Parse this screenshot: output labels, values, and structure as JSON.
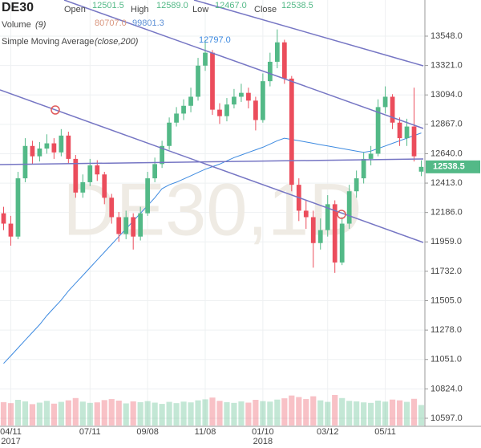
{
  "chart_data": {
    "type": "candlestick",
    "symbol": "DE30",
    "watermark": "DE30,1D",
    "legend": {
      "open_label": "Open",
      "open": "12501.5",
      "high_label": "High",
      "high": "12589.0",
      "low_label": "Low",
      "low": "12467.0",
      "close_label": "Close",
      "close": "12538.5"
    },
    "volume_legend": {
      "name": "Volume",
      "param": "(9)",
      "value": "80707.0",
      "average": "99801.3"
    },
    "ma_legend": {
      "name": "Simple Moving Average",
      "param": "(close,200)"
    },
    "annotation": "12797.0",
    "last_price": "12538.5",
    "categories": [
      null,
      "04/11",
      null,
      null,
      null,
      null,
      null,
      null,
      null,
      null,
      null,
      null,
      "07/11",
      null,
      null,
      null,
      null,
      null,
      null,
      null,
      "09/08",
      null,
      null,
      null,
      null,
      null,
      null,
      null,
      "11/08",
      null,
      null,
      null,
      null,
      null,
      null,
      null,
      "01/10",
      null,
      null,
      null,
      null,
      null,
      null,
      null,
      null,
      "03/12",
      null,
      null,
      null,
      null,
      null,
      null,
      null,
      "05/11",
      null,
      null,
      null,
      null,
      null
    ],
    "years": [
      null,
      "2017",
      null,
      null,
      null,
      null,
      null,
      null,
      null,
      null,
      null,
      null,
      null,
      null,
      null,
      null,
      null,
      null,
      null,
      null,
      null,
      null,
      null,
      null,
      null,
      null,
      null,
      null,
      null,
      null,
      null,
      null,
      null,
      null,
      null,
      null,
      "2018",
      null,
      null,
      null,
      null,
      null,
      null,
      null,
      null,
      null,
      null,
      null,
      null,
      null,
      null,
      null,
      null,
      null,
      null,
      null,
      null,
      null,
      null
    ],
    "open": [
      12180,
      12100,
      12000,
      12450,
      12700,
      12620,
      12680,
      12720,
      12650,
      12780,
      12600,
      12340,
      12420,
      12550,
      12480,
      12300,
      12150,
      12020,
      12150,
      12000,
      12180,
      12450,
      12560,
      12700,
      12880,
      12950,
      13010,
      13080,
      13320,
      13420,
      12980,
      12930,
      13020,
      13080,
      13110,
      13050,
      12900,
      13200,
      13350,
      13500,
      13220,
      12400,
      12200,
      12150,
      11950,
      12050,
      12250,
      11800,
      12100,
      12350,
      12450,
      12600,
      12640,
      13000,
      13080,
      12880,
      12760,
      12850,
      12501.5
    ],
    "high": [
      12230,
      12160,
      12500,
      12760,
      12740,
      12730,
      12790,
      12760,
      12830,
      12810,
      12630,
      12480,
      12600,
      12590,
      12500,
      12330,
      12190,
      12200,
      12180,
      12230,
      12500,
      12610,
      12740,
      12920,
      13000,
      13060,
      13150,
      13380,
      13520,
      13440,
      13030,
      13070,
      13140,
      13180,
      13150,
      13080,
      13260,
      13420,
      13600,
      13520,
      13240,
      12450,
      12280,
      12200,
      12140,
      12320,
      12280,
      12150,
      12400,
      12510,
      12650,
      12700,
      13060,
      13160,
      13100,
      12920,
      12910,
      13150,
      12589
    ],
    "low": [
      12050,
      11930,
      11980,
      12420,
      12560,
      12580,
      12640,
      12600,
      12620,
      12560,
      12300,
      12300,
      12390,
      12430,
      12250,
      12100,
      11960,
      11980,
      11900,
      11970,
      12160,
      12420,
      12530,
      12670,
      12850,
      12900,
      12960,
      13050,
      13280,
      12940,
      12870,
      12890,
      12990,
      13040,
      12990,
      12820,
      12880,
      13160,
      13300,
      13180,
      12350,
      12120,
      12060,
      11760,
      11900,
      12000,
      11720,
      11780,
      12060,
      12300,
      12410,
      12550,
      12620,
      12950,
      12830,
      12700,
      12700,
      12580,
      12467
    ],
    "close": [
      12100,
      12000,
      12450,
      12700,
      12620,
      12680,
      12720,
      12650,
      12780,
      12600,
      12340,
      12420,
      12550,
      12480,
      12300,
      12150,
      12020,
      12150,
      12000,
      12180,
      12450,
      12560,
      12700,
      12880,
      12950,
      13010,
      13080,
      13320,
      13420,
      12980,
      12930,
      13020,
      13080,
      13110,
      13050,
      12900,
      13200,
      13350,
      13500,
      13220,
      12400,
      12200,
      12150,
      11950,
      12050,
      12250,
      11800,
      12100,
      12350,
      12450,
      12600,
      12640,
      13000,
      13080,
      12880,
      12760,
      12850,
      12620,
      12538.5
    ],
    "volume": [
      92000,
      88000,
      101000,
      95000,
      84000,
      90000,
      97000,
      86000,
      93000,
      99000,
      108000,
      94000,
      89000,
      91000,
      100000,
      104000,
      98000,
      87000,
      95000,
      92000,
      96000,
      90000,
      85000,
      93000,
      88000,
      94000,
      91000,
      99000,
      103000,
      110000,
      97000,
      92000,
      89000,
      95000,
      90000,
      101000,
      96000,
      94000,
      102000,
      107000,
      118000,
      112000,
      104000,
      115000,
      99000,
      93000,
      120000,
      108000,
      97000,
      95000,
      91000,
      89000,
      98000,
      94000,
      102000,
      99000,
      93000,
      105000,
      80707
    ],
    "ma": [
      11020,
      11080,
      11140,
      11200,
      11260,
      11320,
      11390,
      11450,
      11510,
      11580,
      11640,
      11700,
      11760,
      11820,
      11880,
      11940,
      12000,
      12060,
      12120,
      12180,
      12240,
      12300,
      12370,
      12400,
      12420,
      12445,
      12470,
      12495,
      12520,
      12540,
      12560,
      12585,
      12610,
      12630,
      12650,
      12670,
      12690,
      12715,
      12740,
      12760,
      12750,
      12740,
      12730,
      12720,
      12710,
      12700,
      12690,
      12680,
      12670,
      12660,
      12650,
      12660,
      12680,
      12700,
      12720,
      12740,
      12760,
      12780,
      12800
    ],
    "up_color": "#53b987",
    "down_color": "#eb4d5c",
    "ma_color": "#3d8ae0",
    "ylim": [
      10541,
      13827
    ],
    "yticks": [
      {
        "value": 13548,
        "label": "13548.0"
      },
      {
        "value": 13321,
        "label": "13321.0"
      },
      {
        "value": 13094,
        "label": "13094.0"
      },
      {
        "value": 12867,
        "label": "12867.0"
      },
      {
        "value": 12640,
        "label": "12640.0"
      },
      {
        "value": 12413,
        "label": "12413.0"
      },
      {
        "value": 12186,
        "label": "12186.0"
      },
      {
        "value": 11959,
        "label": "11959.0"
      },
      {
        "value": 11732,
        "label": "11732.0"
      },
      {
        "value": 11505,
        "label": "11505.0"
      },
      {
        "value": 11278,
        "label": "11278.0"
      },
      {
        "value": 11051,
        "label": "11051.0"
      },
      {
        "value": 10824,
        "label": "10824.0"
      },
      {
        "value": 10597,
        "label": "10597.0"
      }
    ],
    "grid": true
  }
}
